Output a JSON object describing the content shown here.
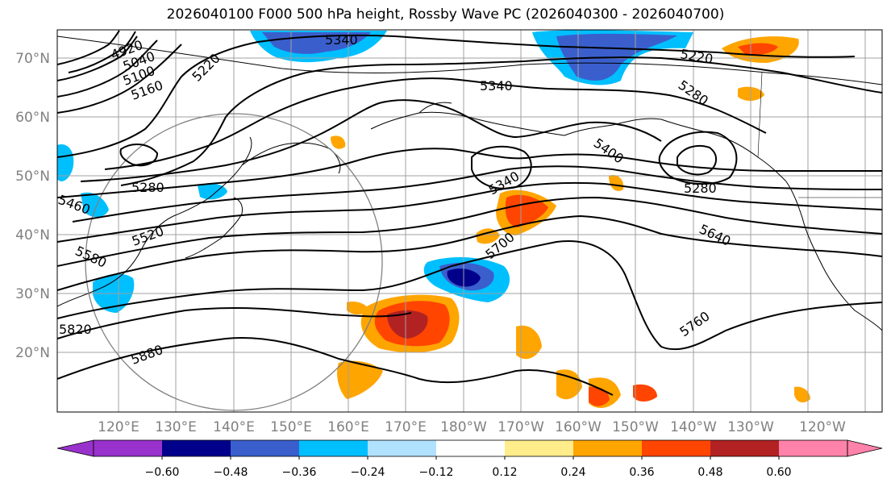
{
  "title": "2026040100 F000 500 hPa height, Rossby Wave PC (2026040300 - 2026040700)",
  "lat_labels": [
    "70°N",
    "60°N",
    "50°N",
    "40°N",
    "30°N",
    "20°N"
  ],
  "lon_labels": [
    "120°E",
    "130°E",
    "140°E",
    "150°E",
    "160°E",
    "170°E",
    "180°W",
    "170°W",
    "160°W",
    "150°W",
    "140°W",
    "130°W",
    "120°W"
  ],
  "contour_labels": [
    "4920",
    "5040",
    "5100",
    "5160",
    "5220",
    "5340",
    "5340",
    "5220",
    "5280",
    "5400",
    "5280",
    "5460",
    "5280",
    "5340",
    "5520",
    "5640",
    "5580",
    "5700",
    "5820",
    "5880",
    "5760"
  ],
  "colorbar": {
    "ticks": [
      "−0.60",
      "−0.48",
      "−0.36",
      "−0.24",
      "−0.12",
      "0.12",
      "0.24",
      "0.36",
      "0.48",
      "0.60"
    ],
    "colors": [
      "#9932cc",
      "#00008b",
      "#3a5fcd",
      "#00bfff",
      "#b0e2ff",
      "#ffffff",
      "#ffec8b",
      "#ffa500",
      "#ff4500",
      "#b22222",
      "#ff82ab"
    ]
  },
  "colors": {
    "contour": "#000000",
    "grid": "#a0a0a0",
    "axis_text": "#808080",
    "circle": "#808080"
  }
}
